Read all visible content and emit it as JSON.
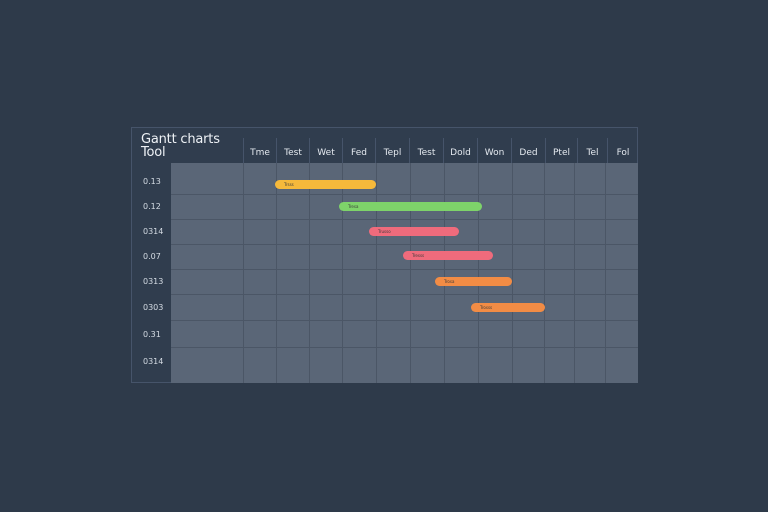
{
  "title": {
    "line1": "Gantt charts",
    "line2": "Tool"
  },
  "columns": [
    "Tme",
    "Test",
    "Wet",
    "Fed",
    "Tepl",
    "Test",
    "Dold",
    "Won",
    "Ded",
    "Ptel",
    "Tel",
    "Fol"
  ],
  "rows": [
    "0.13",
    "0.12",
    "0314",
    "0.07",
    "0313",
    "0303",
    "0.31",
    "0314"
  ],
  "tasks": [
    {
      "label": "Trsss",
      "color": "#f6b93b"
    },
    {
      "label": "Tresa",
      "color": "#7ed36a"
    },
    {
      "label": "Trusso",
      "color": "#ef6b7c"
    },
    {
      "label": "Tresss",
      "color": "#ef6b7c"
    },
    {
      "label": "Trosa",
      "color": "#f28c45"
    },
    {
      "label": "Trosss",
      "color": "#f28c45"
    }
  ],
  "colors": {
    "background": "#2e3a4a",
    "grid": "#5a6677"
  }
}
